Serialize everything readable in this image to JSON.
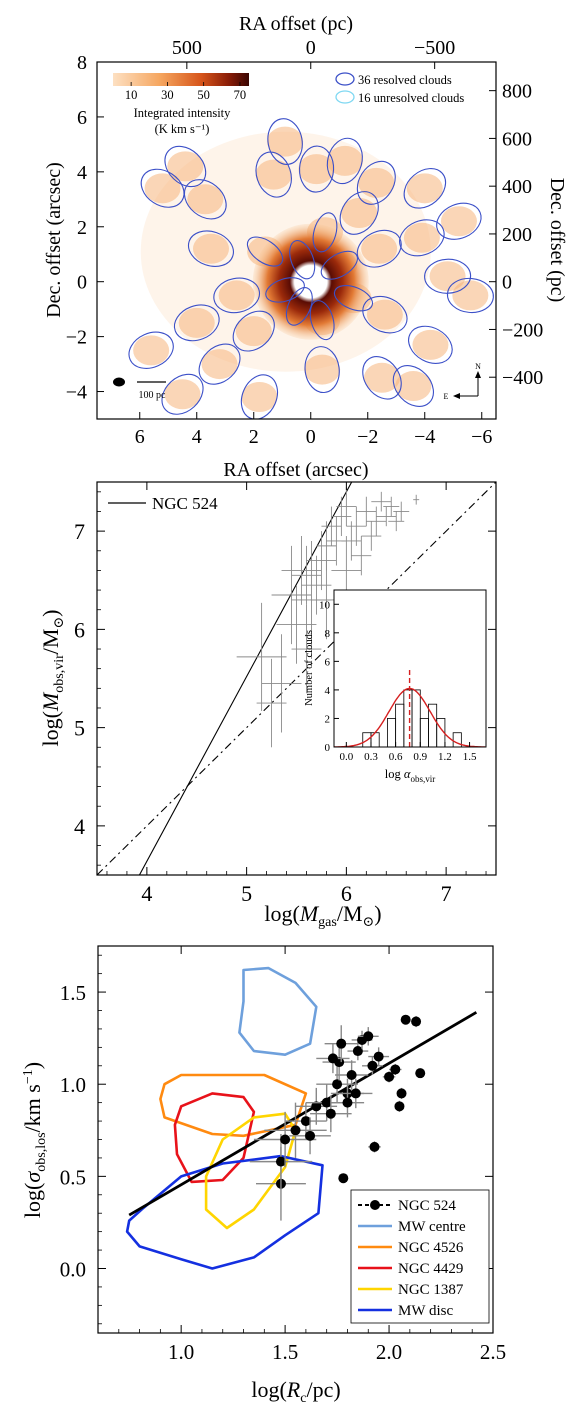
{
  "chart_data": [
    {
      "type": "image",
      "panel": "top",
      "xlabel_bottom": "RA offset (arcsec)",
      "xlabel_top": "RA offset (pc)",
      "ylabel_left": "Dec. offset (arcsec)",
      "ylabel_right": "Dec. offset (pc)",
      "xlim": [
        7.5,
        -6.5
      ],
      "ylim": [
        -5,
        8
      ],
      "xticks": [
        "6",
        "4",
        "2",
        "0",
        "−2",
        "−4",
        "−6"
      ],
      "yticks": [
        "−4",
        "−2",
        "0",
        "2",
        "4",
        "6",
        "8"
      ],
      "top_ticks": [
        "500",
        "0",
        "−500"
      ],
      "right_ticks": [
        "800",
        "600",
        "400",
        "200",
        "0",
        "−200",
        "−400"
      ],
      "colorbar": {
        "ticks": [
          "10",
          "30",
          "50",
          "70"
        ],
        "label_line1": "Integrated intensity",
        "label_line2": "(K km s⁻¹)",
        "range": [
          0,
          75
        ]
      },
      "legend": [
        {
          "label": "36 resolved clouds",
          "color": "#3c50c8"
        },
        {
          "label": "16 unresolved clouds",
          "color": "#7fd8f2"
        }
      ],
      "scalebar_label": "100 pc",
      "compass": {
        "north": "N",
        "east": "E"
      },
      "resolved_clouds": [
        {
          "ra": 4.4,
          "dec": 4.2
        },
        {
          "ra": 3.7,
          "dec": 3.0
        },
        {
          "ra": 1.3,
          "dec": 3.9
        },
        {
          "ra": -0.2,
          "dec": 4.1
        },
        {
          "ra": -1.2,
          "dec": 4.4
        },
        {
          "ra": -2.3,
          "dec": 3.6
        },
        {
          "ra": -4.0,
          "dec": 3.4
        },
        {
          "ra": -3.9,
          "dec": 1.6
        },
        {
          "ra": 3.5,
          "dec": 1.2
        },
        {
          "ra": 1.6,
          "dec": 1.1
        },
        {
          "ra": -2.4,
          "dec": 1.2
        },
        {
          "ra": 0.3,
          "dec": 0.8
        },
        {
          "ra": -1.0,
          "dec": 0.6
        },
        {
          "ra": -4.8,
          "dec": 0.2
        },
        {
          "ra": 2.6,
          "dec": -0.5
        },
        {
          "ra": 0.4,
          "dec": -0.9
        },
        {
          "ra": -1.5,
          "dec": -0.6
        },
        {
          "ra": -2.6,
          "dec": -1.2
        },
        {
          "ra": -5.6,
          "dec": -0.5
        },
        {
          "ra": 4.0,
          "dec": -1.5
        },
        {
          "ra": 2.0,
          "dec": -1.8
        },
        {
          "ra": -4.2,
          "dec": -2.3
        },
        {
          "ra": 5.6,
          "dec": -2.5
        },
        {
          "ra": 3.2,
          "dec": -3.0
        },
        {
          "ra": -0.4,
          "dec": -3.2
        },
        {
          "ra": -2.5,
          "dec": -3.5
        },
        {
          "ra": -3.6,
          "dec": -3.8
        },
        {
          "ra": 4.5,
          "dec": -4.1
        },
        {
          "ra": 1.8,
          "dec": -4.2
        },
        {
          "ra": 5.2,
          "dec": 3.4
        },
        {
          "ra": -5.2,
          "dec": 2.2
        },
        {
          "ra": 0.9,
          "dec": 5.1
        },
        {
          "ra": -0.5,
          "dec": 1.8
        },
        {
          "ra": 0.9,
          "dec": -0.3
        },
        {
          "ra": -0.4,
          "dec": -1.4
        },
        {
          "ra": -1.7,
          "dec": 2.5
        }
      ]
    },
    {
      "type": "scatter",
      "panel": "middle",
      "xlabel": "log(M_gas/M_⊙)",
      "ylabel": "log(M_obs,vir/M_⊙)",
      "xlim": [
        3.5,
        7.5
      ],
      "ylim": [
        3.5,
        7.5
      ],
      "xticks": [
        "4",
        "5",
        "6",
        "7"
      ],
      "yticks": [
        "4",
        "5",
        "6",
        "7"
      ],
      "legend": [
        {
          "label": "NGC 524",
          "style": "solid"
        }
      ],
      "fit_line": {
        "slope": 1.88,
        "intercept": -3.88
      },
      "one_to_one_line": {
        "slope": 1,
        "intercept": 0
      },
      "points": [
        {
          "x": 5.15,
          "y": 5.72,
          "xe": 0.25,
          "ye": 0.55
        },
        {
          "x": 5.35,
          "y": 5.45,
          "xe": 0.2,
          "ye": 0.5
        },
        {
          "x": 5.25,
          "y": 5.25,
          "xe": 0.15,
          "ye": 0.45
        },
        {
          "x": 5.45,
          "y": 6.35,
          "xe": 0.2,
          "ye": 0.5
        },
        {
          "x": 5.55,
          "y": 6.6,
          "xe": 0.2,
          "ye": 0.35
        },
        {
          "x": 5.5,
          "y": 6.05,
          "xe": 0.2,
          "ye": 0.4
        },
        {
          "x": 5.6,
          "y": 6.55,
          "xe": 0.15,
          "ye": 0.3
        },
        {
          "x": 5.65,
          "y": 6.3,
          "xe": 0.2,
          "ye": 0.6
        },
        {
          "x": 5.7,
          "y": 6.45,
          "xe": 0.15,
          "ye": 0.3
        },
        {
          "x": 5.75,
          "y": 6.7,
          "xe": 0.15,
          "ye": 0.3
        },
        {
          "x": 5.8,
          "y": 6.85,
          "xe": 0.1,
          "ye": 0.25
        },
        {
          "x": 5.85,
          "y": 7.05,
          "xe": 0.1,
          "ye": 0.2
        },
        {
          "x": 5.9,
          "y": 6.9,
          "xe": 0.1,
          "ye": 0.25
        },
        {
          "x": 5.95,
          "y": 7.15,
          "xe": 0.1,
          "ye": 0.2
        },
        {
          "x": 6.0,
          "y": 6.6,
          "xe": 0.15,
          "ye": 0.35
        },
        {
          "x": 6.0,
          "y": 7.25,
          "xe": 0.1,
          "ye": 0.2
        },
        {
          "x": 6.05,
          "y": 6.9,
          "xe": 0.1,
          "ye": 0.2
        },
        {
          "x": 6.1,
          "y": 7.05,
          "xe": 0.1,
          "ye": 0.2
        },
        {
          "x": 6.15,
          "y": 6.75,
          "xe": 0.1,
          "ye": 0.2
        },
        {
          "x": 6.2,
          "y": 7.2,
          "xe": 0.1,
          "ye": 0.15
        },
        {
          "x": 6.25,
          "y": 6.95,
          "xe": 0.1,
          "ye": 0.15
        },
        {
          "x": 6.3,
          "y": 7.1,
          "xe": 0.1,
          "ye": 0.15
        },
        {
          "x": 6.35,
          "y": 7.3,
          "xe": 0.1,
          "ye": 0.1
        },
        {
          "x": 6.4,
          "y": 7.15,
          "xe": 0.1,
          "ye": 0.1
        },
        {
          "x": 6.45,
          "y": 7.25,
          "xe": 0.08,
          "ye": 0.1
        },
        {
          "x": 6.5,
          "y": 7.1,
          "xe": 0.08,
          "ye": 0.1
        },
        {
          "x": 6.55,
          "y": 7.2,
          "xe": 0.08,
          "ye": 0.1
        },
        {
          "x": 6.7,
          "y": 7.32,
          "xe": 0.03,
          "ye": 0.05
        },
        {
          "x": 5.6,
          "y": 5.8,
          "xe": 0.15,
          "ye": 0.45
        },
        {
          "x": 5.8,
          "y": 6.3,
          "xe": 0.15,
          "ye": 0.4
        }
      ],
      "inset": {
        "type": "histogram",
        "xlabel": "log α_obs,vir",
        "ylabel": "Number of clouds",
        "xlim": [
          -0.15,
          1.7
        ],
        "ylim": [
          0,
          11
        ],
        "xticks": [
          "0.0",
          "0.3",
          "0.6",
          "0.9",
          "1.2",
          "1.5"
        ],
        "yticks": [
          "0",
          "2",
          "4",
          "6",
          "8",
          "10"
        ],
        "bin_width": 0.1,
        "bins": [
          {
            "x0": -0.1,
            "count": 0
          },
          {
            "x0": 0.0,
            "count": 0
          },
          {
            "x0": 0.1,
            "count": 0
          },
          {
            "x0": 0.2,
            "count": 1
          },
          {
            "x0": 0.3,
            "count": 1
          },
          {
            "x0": 0.4,
            "count": 0
          },
          {
            "x0": 0.5,
            "count": 2
          },
          {
            "x0": 0.6,
            "count": 3
          },
          {
            "x0": 0.7,
            "count": 4
          },
          {
            "x0": 0.8,
            "count": 4
          },
          {
            "x0": 0.9,
            "count": 2
          },
          {
            "x0": 1.0,
            "count": 3
          },
          {
            "x0": 1.1,
            "count": 2
          },
          {
            "x0": 1.2,
            "count": 0
          },
          {
            "x0": 1.3,
            "count": 1
          },
          {
            "x0": 1.4,
            "count": 0
          },
          {
            "x0": 1.5,
            "count": 0
          },
          {
            "x0": 1.6,
            "count": 0
          }
        ],
        "gaussian_fit": {
          "mean": 0.77,
          "sigma": 0.25,
          "amplitude": 4.1,
          "color": "#d62020"
        },
        "median_line": {
          "x": 0.77,
          "color": "#d62020"
        }
      }
    },
    {
      "type": "scatter",
      "panel": "bottom",
      "xlabel": "log(R_c/pc)",
      "ylabel": "log(σ_obs,los/km s⁻¹)",
      "xlim": [
        0.6,
        2.5
      ],
      "ylim": [
        -0.35,
        1.75
      ],
      "xticks": [
        "1.0",
        "1.5",
        "2.0",
        "2.5"
      ],
      "yticks": [
        "0.0",
        "0.5",
        "1.0",
        "1.5"
      ],
      "fit_line": {
        "x": [
          0.75,
          2.42
        ],
        "y": [
          0.29,
          1.39
        ]
      },
      "points": [
        {
          "x": 1.48,
          "y": 0.46,
          "xe": 0.12,
          "ye": 0.2
        },
        {
          "x": 1.48,
          "y": 0.58,
          "xe": 0.15,
          "ye": 0.15
        },
        {
          "x": 1.5,
          "y": 0.7,
          "xe": 0.15,
          "ye": 0.15
        },
        {
          "x": 1.55,
          "y": 0.75,
          "xe": 0.15,
          "ye": 0.15
        },
        {
          "x": 1.6,
          "y": 0.8,
          "xe": 0.1,
          "ye": 0.1
        },
        {
          "x": 1.65,
          "y": 0.88,
          "xe": 0.1,
          "ye": 0.1
        },
        {
          "x": 1.62,
          "y": 0.72,
          "xe": 0.1,
          "ye": 0.1
        },
        {
          "x": 1.7,
          "y": 0.9,
          "xe": 0.1,
          "ye": 0.1
        },
        {
          "x": 1.72,
          "y": 0.84,
          "xe": 0.1,
          "ye": 0.1
        },
        {
          "x": 1.75,
          "y": 1.0,
          "xe": 0.1,
          "ye": 0.1
        },
        {
          "x": 1.76,
          "y": 1.12,
          "xe": 0.08,
          "ye": 0.1
        },
        {
          "x": 1.77,
          "y": 1.22,
          "xe": 0.08,
          "ye": 0.1
        },
        {
          "x": 1.8,
          "y": 0.95,
          "xe": 0.08,
          "ye": 0.08
        },
        {
          "x": 1.78,
          "y": 0.49,
          "xe": 0.0,
          "ye": 0.0
        },
        {
          "x": 1.82,
          "y": 1.05,
          "xe": 0.08,
          "ye": 0.08
        },
        {
          "x": 1.84,
          "y": 0.95,
          "xe": 0.08,
          "ye": 0.08
        },
        {
          "x": 1.85,
          "y": 1.18,
          "xe": 0.05,
          "ye": 0.05
        },
        {
          "x": 1.87,
          "y": 1.24,
          "xe": 0.05,
          "ye": 0.05
        },
        {
          "x": 1.9,
          "y": 1.26,
          "xe": 0.05,
          "ye": 0.05
        },
        {
          "x": 1.92,
          "y": 1.1,
          "xe": 0.05,
          "ye": 0.05
        },
        {
          "x": 1.93,
          "y": 0.66,
          "xe": 0.03,
          "ye": 0.03
        },
        {
          "x": 1.95,
          "y": 1.15,
          "xe": 0.05,
          "ye": 0.05
        },
        {
          "x": 2.0,
          "y": 1.04,
          "xe": 0.03,
          "ye": 0.03
        },
        {
          "x": 2.03,
          "y": 1.08,
          "xe": 0.03,
          "ye": 0.03
        },
        {
          "x": 2.05,
          "y": 0.88,
          "xe": 0.02,
          "ye": 0.03
        },
        {
          "x": 2.06,
          "y": 0.95,
          "xe": 0.02,
          "ye": 0.03
        },
        {
          "x": 2.08,
          "y": 1.35,
          "xe": 0.02,
          "ye": 0.02
        },
        {
          "x": 2.13,
          "y": 1.34,
          "xe": 0.02,
          "ye": 0.03
        },
        {
          "x": 2.15,
          "y": 1.06,
          "xe": 0.02,
          "ye": 0.02
        },
        {
          "x": 1.73,
          "y": 1.14,
          "xe": 0.08,
          "ye": 0.08
        },
        {
          "x": 1.8,
          "y": 0.9,
          "xe": 0.08,
          "ye": 0.08
        }
      ],
      "regions": [
        {
          "name": "MW centre",
          "color": "#6ea0dc",
          "contour": [
            [
              1.3,
              1.62
            ],
            [
              1.42,
              1.63
            ],
            [
              1.55,
              1.55
            ],
            [
              1.65,
              1.42
            ],
            [
              1.62,
              1.22
            ],
            [
              1.5,
              1.16
            ],
            [
              1.35,
              1.18
            ],
            [
              1.28,
              1.28
            ],
            [
              1.3,
              1.45
            ]
          ]
        },
        {
          "name": "NGC 4526",
          "color": "#ff8a10",
          "contour": [
            [
              0.92,
              1.0
            ],
            [
              1.0,
              1.05
            ],
            [
              1.4,
              1.05
            ],
            [
              1.6,
              0.95
            ],
            [
              1.55,
              0.78
            ],
            [
              1.3,
              0.72
            ],
            [
              1.15,
              0.73
            ],
            [
              0.92,
              0.82
            ],
            [
              0.9,
              0.92
            ]
          ]
        },
        {
          "name": "NGC 4429",
          "color": "#e8121a",
          "contour": [
            [
              1.0,
              0.88
            ],
            [
              1.15,
              0.95
            ],
            [
              1.3,
              0.93
            ],
            [
              1.35,
              0.85
            ],
            [
              1.3,
              0.6
            ],
            [
              1.2,
              0.48
            ],
            [
              1.05,
              0.47
            ],
            [
              0.98,
              0.62
            ],
            [
              0.97,
              0.78
            ]
          ]
        },
        {
          "name": "NGC 1387",
          "color": "#ffd500",
          "contour": [
            [
              1.12,
              0.5
            ],
            [
              1.2,
              0.7
            ],
            [
              1.35,
              0.82
            ],
            [
              1.5,
              0.84
            ],
            [
              1.55,
              0.75
            ],
            [
              1.5,
              0.55
            ],
            [
              1.35,
              0.32
            ],
            [
              1.22,
              0.22
            ],
            [
              1.12,
              0.32
            ]
          ]
        },
        {
          "name": "MW disc",
          "color": "#1430e0",
          "contour": [
            [
              0.75,
              0.26
            ],
            [
              0.82,
              0.33
            ],
            [
              1.0,
              0.5
            ],
            [
              1.2,
              0.57
            ],
            [
              1.48,
              0.61
            ],
            [
              1.68,
              0.56
            ],
            [
              1.66,
              0.3
            ],
            [
              1.5,
              0.18
            ],
            [
              1.35,
              0.06
            ],
            [
              1.15,
              0.0
            ],
            [
              1.0,
              0.05
            ],
            [
              0.8,
              0.12
            ],
            [
              0.74,
              0.2
            ]
          ]
        }
      ],
      "legend": [
        {
          "label": "NGC 524",
          "color": "#000000",
          "style": "marker"
        },
        {
          "label": "MW centre",
          "color": "#6ea0dc"
        },
        {
          "label": "NGC 4526",
          "color": "#ff8a10"
        },
        {
          "label": "NGC 4429",
          "color": "#e8121a"
        },
        {
          "label": "NGC 1387",
          "color": "#ffd500"
        },
        {
          "label": "MW disc",
          "color": "#1430e0"
        }
      ]
    }
  ]
}
